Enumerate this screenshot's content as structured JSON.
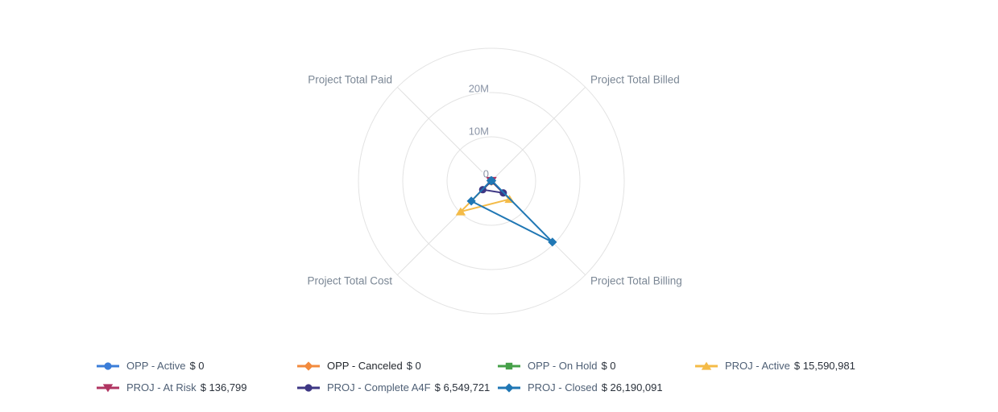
{
  "background": "#ffffff",
  "grid_color": "#e3e3e3",
  "chart_data": {
    "type": "radar",
    "axes": [
      "Project Total Billed",
      "Project Total Billing",
      "Project Total Cost",
      "Project Total Paid"
    ],
    "radial_ticks": [
      "0",
      "10M",
      "20M"
    ],
    "radial_tick_values": [
      0,
      10000000,
      20000000
    ],
    "radial_max": 30000000,
    "grid": true,
    "legend_position": "bottom",
    "series": [
      {
        "name": "OPP - Active",
        "legend_value": "$ 0",
        "total": 0,
        "color": "#3b7dd8",
        "marker": "circle",
        "values": [
          0,
          0,
          0,
          0
        ]
      },
      {
        "name": "OPP - Canceled",
        "legend_value": "$ 0",
        "total": 0,
        "color": "#f28a3d",
        "marker": "diamond",
        "values": [
          0,
          0,
          0,
          0
        ],
        "name_dark": true
      },
      {
        "name": "OPP - On Hold",
        "legend_value": "$ 0",
        "total": 0,
        "color": "#46a049",
        "marker": "square",
        "values": [
          0,
          0,
          0,
          0
        ]
      },
      {
        "name": "PROJ - Active",
        "legend_value": "$ 15,590,981",
        "total": 15590981,
        "color": "#f4bb47",
        "marker": "triangle",
        "values": [
          0,
          5800000,
          9790981,
          0
        ]
      },
      {
        "name": "PROJ - At Risk",
        "legend_value": "$ 136,799",
        "total": 136799,
        "color": "#b03562",
        "marker": "triangle-down",
        "values": [
          136799,
          0,
          0,
          0
        ]
      },
      {
        "name": "PROJ - Complete A4F",
        "legend_value": "$ 6,549,721",
        "total": 6549721,
        "color": "#3e3784",
        "marker": "circle",
        "values": [
          0,
          3800000,
          2749721,
          0
        ]
      },
      {
        "name": "PROJ - Closed",
        "legend_value": "$ 26,190,091",
        "total": 26190091,
        "color": "#2077b4",
        "marker": "diamond",
        "values": [
          140091,
          19500000,
          6400000,
          150000
        ]
      }
    ]
  },
  "legend": {
    "items": [
      {
        "name": "OPP - Active",
        "value": "$ 0"
      },
      {
        "name": "OPP - Canceled",
        "value": "$ 0"
      },
      {
        "name": "OPP - On Hold",
        "value": "$ 0"
      },
      {
        "name": "PROJ - Active",
        "value": "$ 15,590,981"
      },
      {
        "name": "PROJ - At Risk",
        "value": "$ 136,799"
      },
      {
        "name": "PROJ - Complete A4F",
        "value": "$ 6,549,721"
      },
      {
        "name": "PROJ - Closed",
        "value": "$ 26,190,091"
      }
    ]
  }
}
